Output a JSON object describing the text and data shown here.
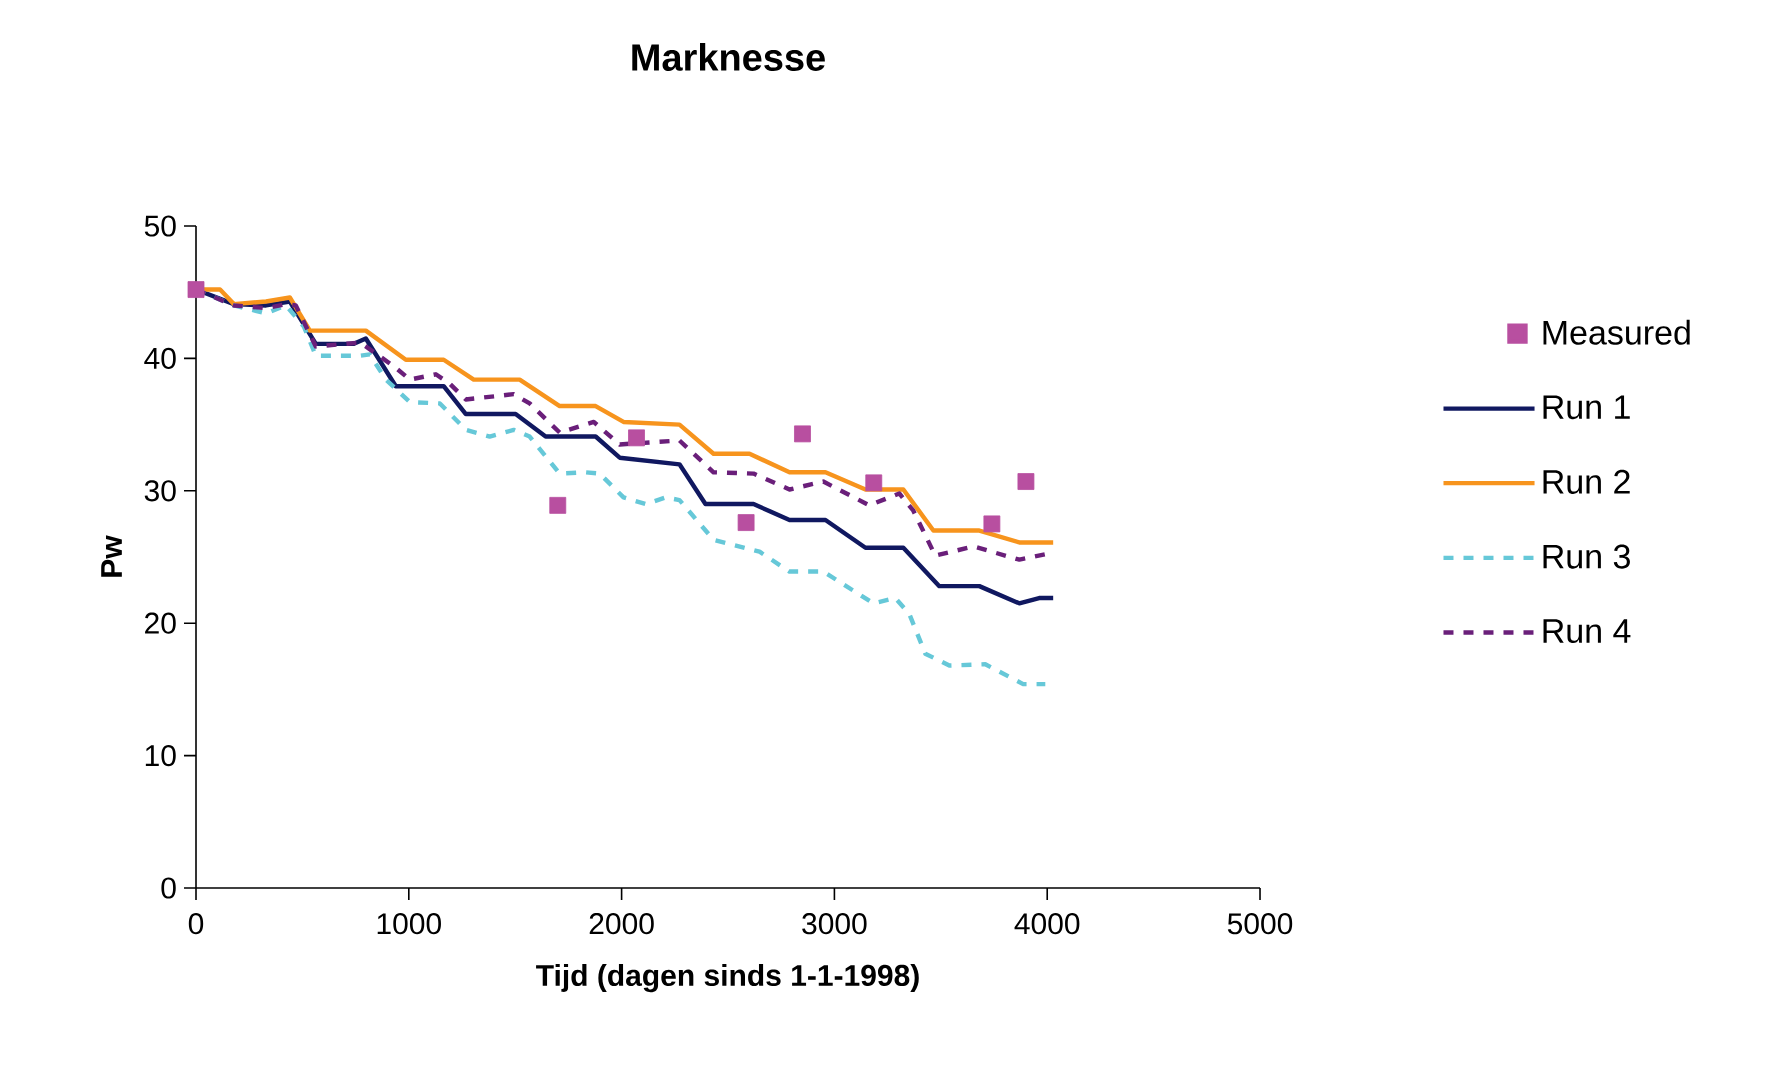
{
  "chart_data": {
    "type": "line",
    "title": "Marknesse",
    "xlabel": "Tijd (dagen sinds 1-1-1998)",
    "ylabel": "Pw",
    "xlim": [
      0,
      5000
    ],
    "ylim": [
      0,
      50
    ],
    "xticks": [
      0,
      1000,
      2000,
      3000,
      4000,
      5000
    ],
    "yticks": [
      0,
      10,
      20,
      30,
      40,
      50
    ],
    "grid": false,
    "legend": "right",
    "series": [
      {
        "name": "Measured",
        "type": "scatter",
        "marker": "square",
        "color": "#b84fa0",
        "x": [
          0,
          1700,
          2070,
          2585,
          2850,
          3185,
          3740,
          3900
        ],
        "values": [
          45.2,
          28.9,
          34.0,
          27.6,
          34.3,
          30.6,
          27.5,
          30.7
        ]
      },
      {
        "name": "Run 1",
        "type": "line",
        "line_style": "solid",
        "color": "#101860",
        "x": [
          0,
          178,
          329,
          441,
          563,
          742,
          798,
          939,
          1164,
          1268,
          1502,
          1643,
          1878,
          1991,
          2272,
          2394,
          2620,
          2789,
          2958,
          3146,
          3324,
          3493,
          3681,
          3869,
          3962,
          4028
        ],
        "values": [
          45.2,
          44.1,
          44.0,
          44.3,
          41.1,
          41.1,
          41.5,
          37.9,
          37.9,
          35.8,
          35.8,
          34.1,
          34.1,
          32.5,
          32.0,
          29.0,
          29.0,
          27.8,
          27.8,
          25.7,
          25.7,
          22.8,
          22.8,
          21.5,
          21.9,
          21.9
        ]
      },
      {
        "name": "Run 2",
        "type": "line",
        "line_style": "solid",
        "color": "#f7941d",
        "x": [
          0,
          113,
          178,
          329,
          441,
          535,
          798,
          986,
          1164,
          1305,
          1521,
          1709,
          1878,
          2009,
          2272,
          2432,
          2601,
          2789,
          2958,
          3146,
          3324,
          3465,
          3681,
          3869,
          4028
        ],
        "values": [
          45.2,
          45.2,
          44.1,
          44.3,
          44.6,
          42.1,
          42.1,
          39.9,
          39.9,
          38.4,
          38.4,
          36.4,
          36.4,
          35.2,
          35.0,
          32.8,
          32.8,
          31.4,
          31.4,
          30.1,
          30.1,
          27.0,
          27.0,
          26.1,
          26.1
        ]
      },
      {
        "name": "Run 3",
        "type": "line",
        "line_style": "dashed",
        "color": "#66c8d8",
        "x": [
          0,
          178,
          329,
          423,
          507,
          563,
          770,
          817,
          892,
          1005,
          1146,
          1268,
          1380,
          1493,
          1568,
          1709,
          1831,
          1897,
          2009,
          2113,
          2207,
          2272,
          2432,
          2648,
          2789,
          2948,
          3183,
          3286,
          3352,
          3427,
          3540,
          3709,
          3887,
          3991
        ],
        "values": [
          45.2,
          44.0,
          43.4,
          44.0,
          42.4,
          40.2,
          40.2,
          40.3,
          38.4,
          36.7,
          36.6,
          34.6,
          34.1,
          34.6,
          34.1,
          31.3,
          31.4,
          31.3,
          29.5,
          29.0,
          29.5,
          29.3,
          26.3,
          25.4,
          23.9,
          23.9,
          21.5,
          21.9,
          20.7,
          17.7,
          16.8,
          16.9,
          15.4,
          15.4
        ]
      },
      {
        "name": "Run 4",
        "type": "line",
        "line_style": "dashed",
        "color": "#6a1f7a",
        "x": [
          0,
          178,
          329,
          423,
          469,
          563,
          770,
          798,
          930,
          1005,
          1127,
          1192,
          1268,
          1493,
          1568,
          1709,
          1869,
          1991,
          2272,
          2432,
          2620,
          2789,
          2948,
          3164,
          3305,
          3371,
          3474,
          3653,
          3869,
          3991
        ],
        "values": [
          45.2,
          44.0,
          43.8,
          44.1,
          44.0,
          40.9,
          41.2,
          40.9,
          39.4,
          38.4,
          38.8,
          38.1,
          36.9,
          37.3,
          36.6,
          34.4,
          35.2,
          33.5,
          33.8,
          31.4,
          31.3,
          30.1,
          30.7,
          28.9,
          29.8,
          28.5,
          25.1,
          25.8,
          24.8,
          25.2
        ]
      }
    ]
  }
}
